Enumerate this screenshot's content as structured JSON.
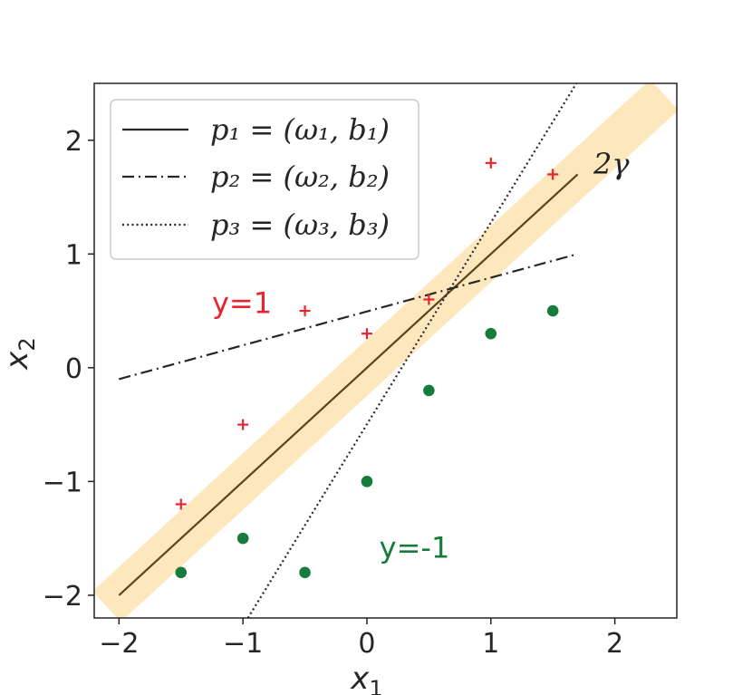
{
  "chart_data": {
    "type": "scatter",
    "xlabel": "x",
    "xlabel_sub": "1",
    "ylabel": "x",
    "ylabel_sub": "2",
    "xlim": [
      -2.2,
      2.5
    ],
    "ylim": [
      -2.2,
      2.5
    ],
    "xticks": [
      -2,
      -1,
      0,
      1,
      2
    ],
    "yticks": [
      -2,
      -1,
      0,
      1,
      2
    ],
    "xtick_labels": [
      "−2",
      "−1",
      "0",
      "1",
      "2"
    ],
    "ytick_labels": [
      "−2",
      "−1",
      "0",
      "1",
      "2"
    ],
    "grid": false,
    "legend_position": "top-left",
    "legend": [
      {
        "label": "p₁ = (ω₁, b₁)",
        "style": "solid"
      },
      {
        "label": "p₂ = (ω₂, b₂)",
        "style": "dashdot"
      },
      {
        "label": "p₃ = (ω₃, b₃)",
        "style": "dotted"
      }
    ],
    "lines": [
      {
        "style": "solid",
        "color": "#5a4419",
        "x": [
          -2.0,
          1.7
        ],
        "y": [
          -2.0,
          1.7
        ]
      },
      {
        "style": "dashdot",
        "color": "#262626",
        "x": [
          -2.0,
          1.7
        ],
        "y": [
          -0.1,
          1.0
        ]
      },
      {
        "style": "dotted",
        "color": "#262626",
        "x": [
          -0.96,
          1.69
        ],
        "y": [
          -2.2,
          2.5
        ]
      }
    ],
    "margin_band": {
      "color": "#fde8be",
      "x": [
        -2.1,
        2.4
      ],
      "y": [
        -2.1,
        2.4
      ],
      "label": "2γ"
    },
    "class_pos": {
      "label": "y=1",
      "label_at": [
        -1.25,
        0.48
      ],
      "color": "#e8242c",
      "marker": "plus",
      "points": [
        [
          -1.5,
          -1.2
        ],
        [
          -1.0,
          -0.5
        ],
        [
          -0.5,
          0.5
        ],
        [
          0.0,
          0.3
        ],
        [
          0.5,
          0.6
        ],
        [
          1.0,
          1.8
        ],
        [
          1.5,
          1.7
        ]
      ]
    },
    "class_neg": {
      "label": "y=-1",
      "label_at": [
        0.1,
        -1.67
      ],
      "color": "#157c3c",
      "marker": "circle",
      "points": [
        [
          -1.5,
          -1.8
        ],
        [
          -1.0,
          -1.5
        ],
        [
          -0.5,
          -1.8
        ],
        [
          0.0,
          -1.0
        ],
        [
          0.5,
          -0.2
        ],
        [
          1.0,
          0.3
        ],
        [
          1.5,
          0.5
        ]
      ]
    }
  }
}
